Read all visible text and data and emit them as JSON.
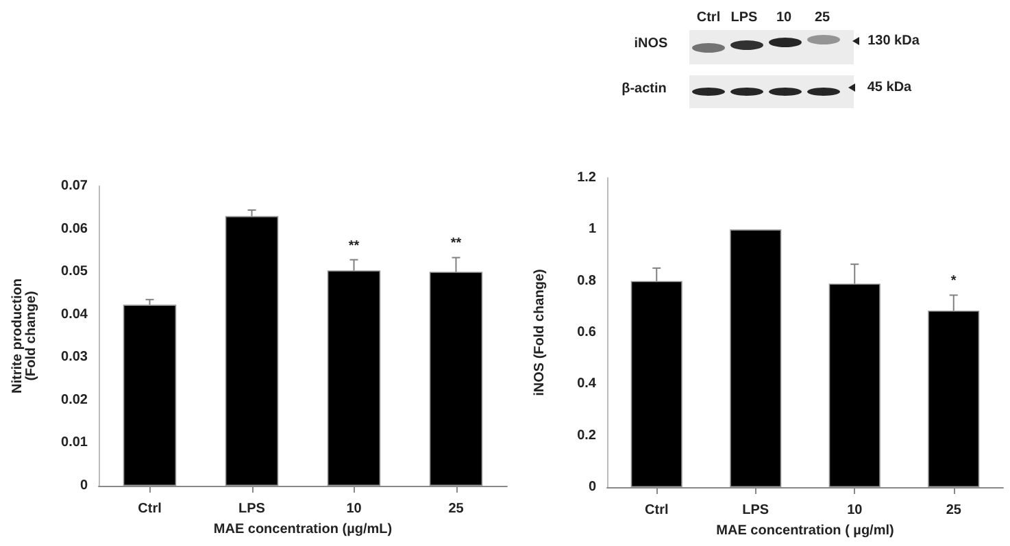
{
  "chart_data": [
    {
      "type": "other",
      "categories": [
        "Ctrl",
        "LPS",
        "10",
        "25"
      ],
      "annotations": [
        "iNOS",
        "β-actin",
        "130 kDa",
        "45 kDa"
      ]
    },
    {
      "type": "bar",
      "categories": [
        "Ctrl",
        "LPS",
        "10",
        "25"
      ],
      "values": [
        0.0423,
        0.063,
        0.0503,
        0.05
      ],
      "errors": [
        0.0012,
        0.0014,
        0.0025,
        0.0033
      ],
      "color": "#000000",
      "xlabel": "MAE concentration (µg/mL)",
      "ylabel": "Nitrite production\n(Fold change)",
      "ylim": [
        0,
        0.07
      ],
      "yticks": [
        0,
        0.01,
        0.02,
        0.03,
        0.04,
        0.05,
        0.06,
        0.07
      ],
      "grid": false,
      "annotations": [
        {
          "text": "**",
          "x": "10",
          "y": 0.0528
        },
        {
          "text": "**",
          "x": "25",
          "y": 0.0533
        }
      ]
    },
    {
      "type": "bar",
      "categories": [
        "Ctrl",
        "LPS",
        "10",
        "25"
      ],
      "values": [
        0.8,
        1.0,
        0.79,
        0.685
      ],
      "errors": [
        0.05,
        null,
        0.075,
        0.06
      ],
      "color": "#000000",
      "xlabel": "MAE concentration ( µg/ml)",
      "ylabel": "iNOS (Fold change)",
      "ylim": [
        0,
        1.2
      ],
      "yticks": [
        0,
        0.2,
        0.4,
        0.6,
        0.8,
        1,
        1.2
      ],
      "grid": false,
      "annotations": [
        {
          "text": "*",
          "x": "25",
          "y": 0.745
        }
      ]
    }
  ]
}
